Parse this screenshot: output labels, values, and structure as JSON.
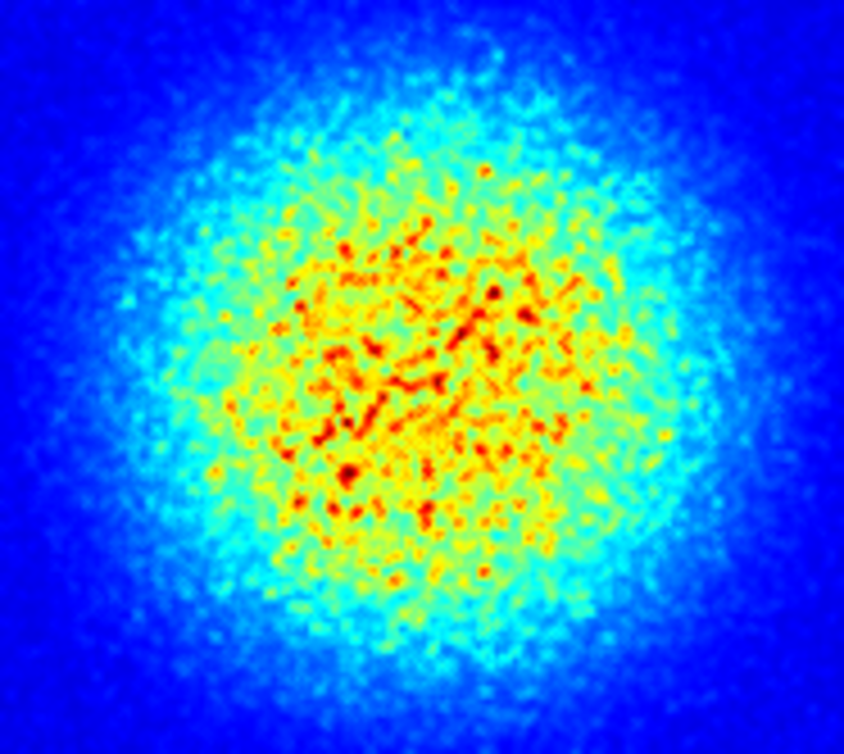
{
  "image": {
    "colormap": "jet",
    "colormap_stops": [
      "#00007f",
      "#0000ff",
      "#007fff",
      "#00ffff",
      "#7fff7f",
      "#ffff00",
      "#ff7f00",
      "#ff0000",
      "#7f0000"
    ],
    "background_color": "#00008f",
    "pattern": "speckle",
    "envelope": "super-gaussian"
  }
}
